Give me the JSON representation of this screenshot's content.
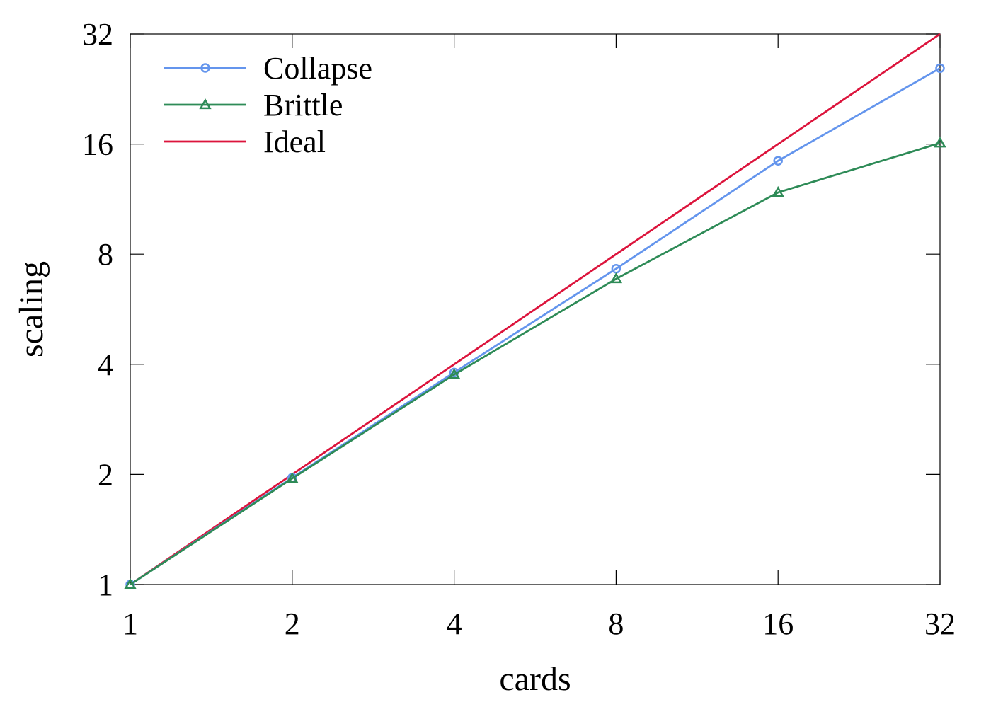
{
  "chart_data": {
    "type": "line",
    "xlabel": "cards",
    "ylabel": "scaling",
    "x_scale": "log2",
    "y_scale": "log2",
    "xlim": [
      1,
      32
    ],
    "ylim": [
      1,
      32
    ],
    "x_ticks": [
      1,
      2,
      4,
      8,
      16,
      32
    ],
    "y_ticks": [
      1,
      2,
      4,
      8,
      16,
      32
    ],
    "x_tick_labels": [
      "1",
      "2",
      "4",
      "8",
      "16",
      "32"
    ],
    "y_tick_labels": [
      "1",
      "2",
      "4",
      "8",
      "16",
      "32"
    ],
    "grid": false,
    "legend_position": "top-left",
    "x": [
      1,
      2,
      4,
      8,
      16,
      32
    ],
    "series": [
      {
        "name": "Collapse",
        "values": [
          1,
          1.96,
          3.8,
          7.3,
          14.4,
          25.8
        ],
        "color": "#6495ed",
        "marker": "circle"
      },
      {
        "name": "Brittle",
        "values": [
          1,
          1.95,
          3.75,
          6.85,
          11.8,
          16.1
        ],
        "color": "#2e8b57",
        "marker": "triangle"
      },
      {
        "name": "Ideal",
        "values": [
          1,
          2,
          4,
          8,
          16,
          32
        ],
        "color": "#dc143c",
        "marker": "none"
      }
    ]
  }
}
